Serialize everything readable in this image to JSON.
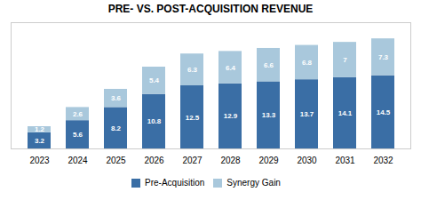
{
  "chart_data": {
    "type": "bar",
    "stacked": true,
    "title": "PRE- VS. POST-ACQUISITION REVENUE",
    "categories": [
      "2023",
      "2024",
      "2025",
      "2026",
      "2027",
      "2028",
      "2029",
      "2030",
      "2031",
      "2032"
    ],
    "series": [
      {
        "name": "Pre-Acquisition",
        "color": "#3A6EA5",
        "values": [
          3.2,
          5.6,
          8.2,
          10.8,
          12.5,
          12.9,
          13.3,
          13.7,
          14.1,
          14.5
        ]
      },
      {
        "name": "Synergy Gain",
        "color": "#A9C8DC",
        "values": [
          1.2,
          2.6,
          3.6,
          5.4,
          6.3,
          6.4,
          6.6,
          6.8,
          7.0,
          7.3
        ]
      }
    ],
    "ylim": [
      0,
      25
    ],
    "yticks": [],
    "grid": false,
    "tick_labels": "x",
    "legend": "bottom",
    "data_labels": true
  }
}
